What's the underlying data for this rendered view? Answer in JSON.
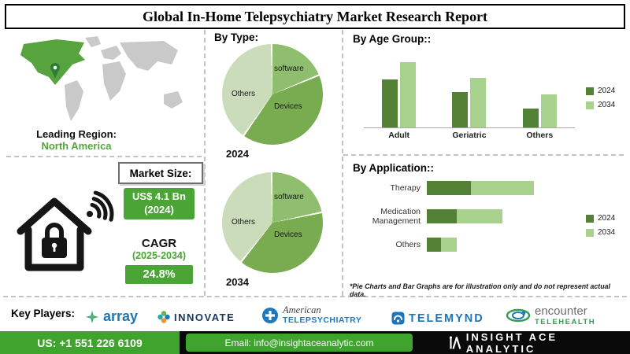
{
  "title": "Global In-Home Telepsychiatry Market Research Report",
  "leading_region": {
    "label": "Leading Region:",
    "value": "North America"
  },
  "market_size": {
    "label": "Market Size:",
    "value_line1": "US$ 4.1 Bn",
    "value_line2": "(2024)"
  },
  "cagr": {
    "label": "CAGR",
    "period": "(2025-2034)",
    "value": "24.8%"
  },
  "colors": {
    "accent_green": "#4ba536",
    "footer_green": "#3fa42e",
    "map_highlight": "#57a33e",
    "map_land": "#c9c9c9",
    "bar_2024": "#538135",
    "bar_2034": "#A9D18E"
  },
  "icons": {
    "map_pin": "location-pin-icon",
    "house": "smart-home-lock-icon",
    "wifi": "wifi-signal-icon",
    "array_logo": "array-logo-icon",
    "innovate_logo": "innovate-pinwheel-icon",
    "american_telepsychiatry_logo": "american-telepsychiatry-icon",
    "telemynd_logo": "telemynd-icon",
    "encounter_logo": "encounter-ellipses-icon",
    "insight_ace": "insight-ace-logo-icon"
  },
  "chart_data": [
    {
      "type": "pie",
      "title": "By Type:",
      "year": "2024",
      "labels": [
        "software",
        "Devices",
        "Others"
      ],
      "values": [
        19,
        41,
        40
      ],
      "colors": [
        "#8FBE6E",
        "#79AC51",
        "#CBDCBB"
      ],
      "note": "illustrative"
    },
    {
      "type": "pie",
      "title": "By Type:",
      "year": "2034",
      "labels": [
        "software",
        "Devices",
        "Others"
      ],
      "values": [
        22,
        39,
        39
      ],
      "colors": [
        "#8FBE6E",
        "#79AC51",
        "#CBDCBB"
      ],
      "note": "illustrative"
    },
    {
      "type": "bar",
      "title": "By Age Group::",
      "categories": [
        "Adult",
        "Geriatric",
        "Others"
      ],
      "series": [
        {
          "name": "2024",
          "values": [
            62,
            46,
            24
          ]
        },
        {
          "name": "2034",
          "values": [
            85,
            64,
            43
          ]
        }
      ],
      "colors": [
        "#538135",
        "#A9D18E"
      ],
      "ylim": [
        0,
        100
      ],
      "legend_position": "right",
      "grid": false
    },
    {
      "type": "bar",
      "orientation": "horizontal",
      "stacked": true,
      "title": "By Application::",
      "categories": [
        "Therapy",
        "Medication Management",
        "Others"
      ],
      "series": [
        {
          "name": "2024",
          "values": [
            35,
            24,
            11
          ]
        },
        {
          "name": "2034",
          "values": [
            50,
            36,
            13
          ]
        }
      ],
      "colors": [
        "#538135",
        "#A9D18E"
      ],
      "legend_position": "right",
      "grid": false
    }
  ],
  "disclaimer": "*Pie Charts and Bar Graphs are for illustration only and do not represent actual data.",
  "key_players": {
    "label": "Key Players:",
    "logos": [
      {
        "name": "array"
      },
      {
        "name": "INNOVATE"
      },
      {
        "name": "American",
        "sub": "TELEPSYCHIATRY"
      },
      {
        "name": "TELEMYND"
      },
      {
        "name": "encounter",
        "sub": "TELEHEALTH"
      }
    ]
  },
  "footer": {
    "phone": "US: +1 551 226 6109",
    "email": "Email: info@insightaceanalytic.com",
    "brand": "INSIGHT ACE ANALYTIC"
  }
}
